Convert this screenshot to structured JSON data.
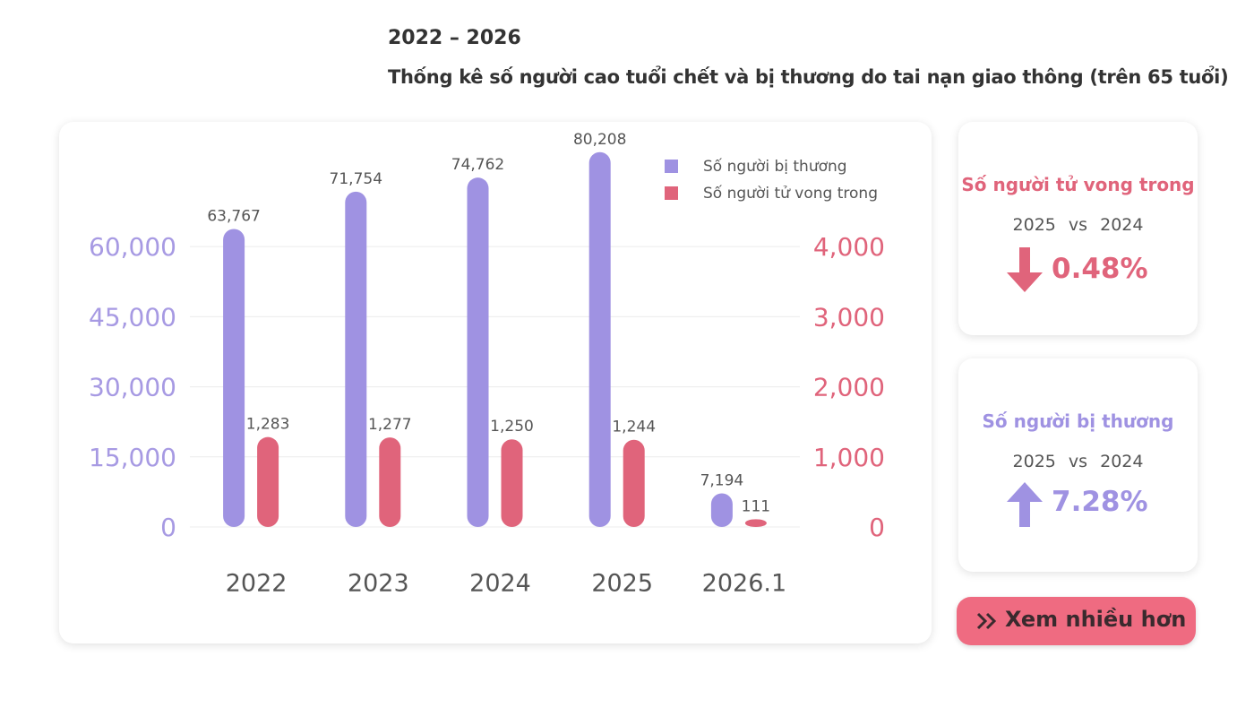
{
  "header": {
    "title": "2022 – 2026",
    "subtitle": "Thống kê số người cao tuổi chết và bị thương do tai nạn giao thông (trên 65 tuổi)"
  },
  "chart_data": {
    "type": "bar",
    "categories": [
      "2022",
      "2023",
      "2024",
      "2025",
      "2026.1"
    ],
    "series": [
      {
        "name": "Số người bị thương",
        "color": "#9f92e2",
        "values": [
          63767,
          71754,
          74762,
          80208,
          7194
        ],
        "value_labels": [
          "63,767",
          "71,754",
          "74,762",
          "80,208",
          "7,194"
        ]
      },
      {
        "name": "Số người tử vong trong",
        "color": "#e0647b",
        "axis": "y2",
        "values": [
          1283,
          1277,
          1250,
          1244,
          111
        ],
        "value_labels": [
          "1,283",
          "1,277",
          "1,250",
          "1,244",
          "111"
        ]
      }
    ],
    "ylim": [
      0,
      84000
    ],
    "yticks": [
      0,
      {
        "value": 15000,
        "label": "15,000"
      },
      {
        "value": 30000,
        "label": "30,000"
      },
      {
        "value": 45000,
        "label": "45,000"
      },
      {
        "value": 60000,
        "label": "60,000"
      }
    ],
    "y2lim": [
      0,
      5600
    ],
    "y2ticks": [
      0,
      {
        "value": 1000,
        "label": "1,000"
      },
      {
        "value": 2000,
        "label": "2,000"
      },
      {
        "value": 3000,
        "label": "3,000"
      },
      {
        "value": 4000,
        "label": "4,000"
      }
    ],
    "grid": true,
    "legend": "top-right"
  },
  "cards": [
    {
      "title": "Số người tử vong trong",
      "period": "2025 vs 2024",
      "change": "0.48%"
    },
    {
      "title": "Số người bị thương",
      "period": "2025 vs 2024",
      "change": "7.28%"
    }
  ],
  "button": {
    "label": "Xem nhiều hơn"
  }
}
